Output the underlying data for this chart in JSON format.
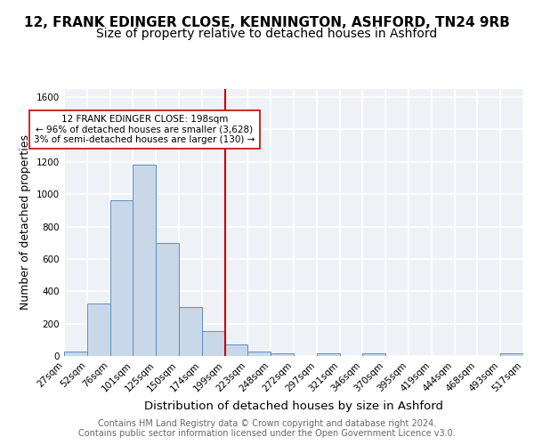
{
  "title_line1": "12, FRANK EDINGER CLOSE, KENNINGTON, ASHFORD, TN24 9RB",
  "title_line2": "Size of property relative to detached houses in Ashford",
  "xlabel": "Distribution of detached houses by size in Ashford",
  "ylabel": "Number of detached properties",
  "bin_edges": [
    "27sqm",
    "52sqm",
    "76sqm",
    "101sqm",
    "125sqm",
    "150sqm",
    "174sqm",
    "199sqm",
    "223sqm",
    "248sqm",
    "272sqm",
    "297sqm",
    "321sqm",
    "346sqm",
    "370sqm",
    "395sqm",
    "419sqm",
    "444sqm",
    "468sqm",
    "493sqm",
    "517sqm"
  ],
  "bar_heights": [
    30,
    325,
    965,
    1185,
    700,
    300,
    155,
    70,
    25,
    15,
    0,
    15,
    0,
    15,
    0,
    0,
    0,
    0,
    0,
    15
  ],
  "bar_color": "#c8d8e8",
  "bar_edge_color": "#5a90c0",
  "vline_label": "199sqm",
  "vline_color": "#cc0000",
  "annotation_text": "12 FRANK EDINGER CLOSE: 198sqm\n← 96% of detached houses are smaller (3,628)\n3% of semi-detached houses are larger (130) →",
  "annotation_box_color": "#ffffff",
  "annotation_box_edge": "#cc0000",
  "ylim": [
    0,
    1650
  ],
  "yticks": [
    0,
    200,
    400,
    600,
    800,
    1000,
    1200,
    1400,
    1600
  ],
  "footer_text": "Contains HM Land Registry data © Crown copyright and database right 2024.\nContains public sector information licensed under the Open Government Licence v3.0.",
  "background_color": "#eef2f7",
  "grid_color": "#ffffff",
  "title_fontsize": 11,
  "subtitle_fontsize": 10,
  "axis_label_fontsize": 9,
  "tick_fontsize": 7.5,
  "footer_fontsize": 7
}
